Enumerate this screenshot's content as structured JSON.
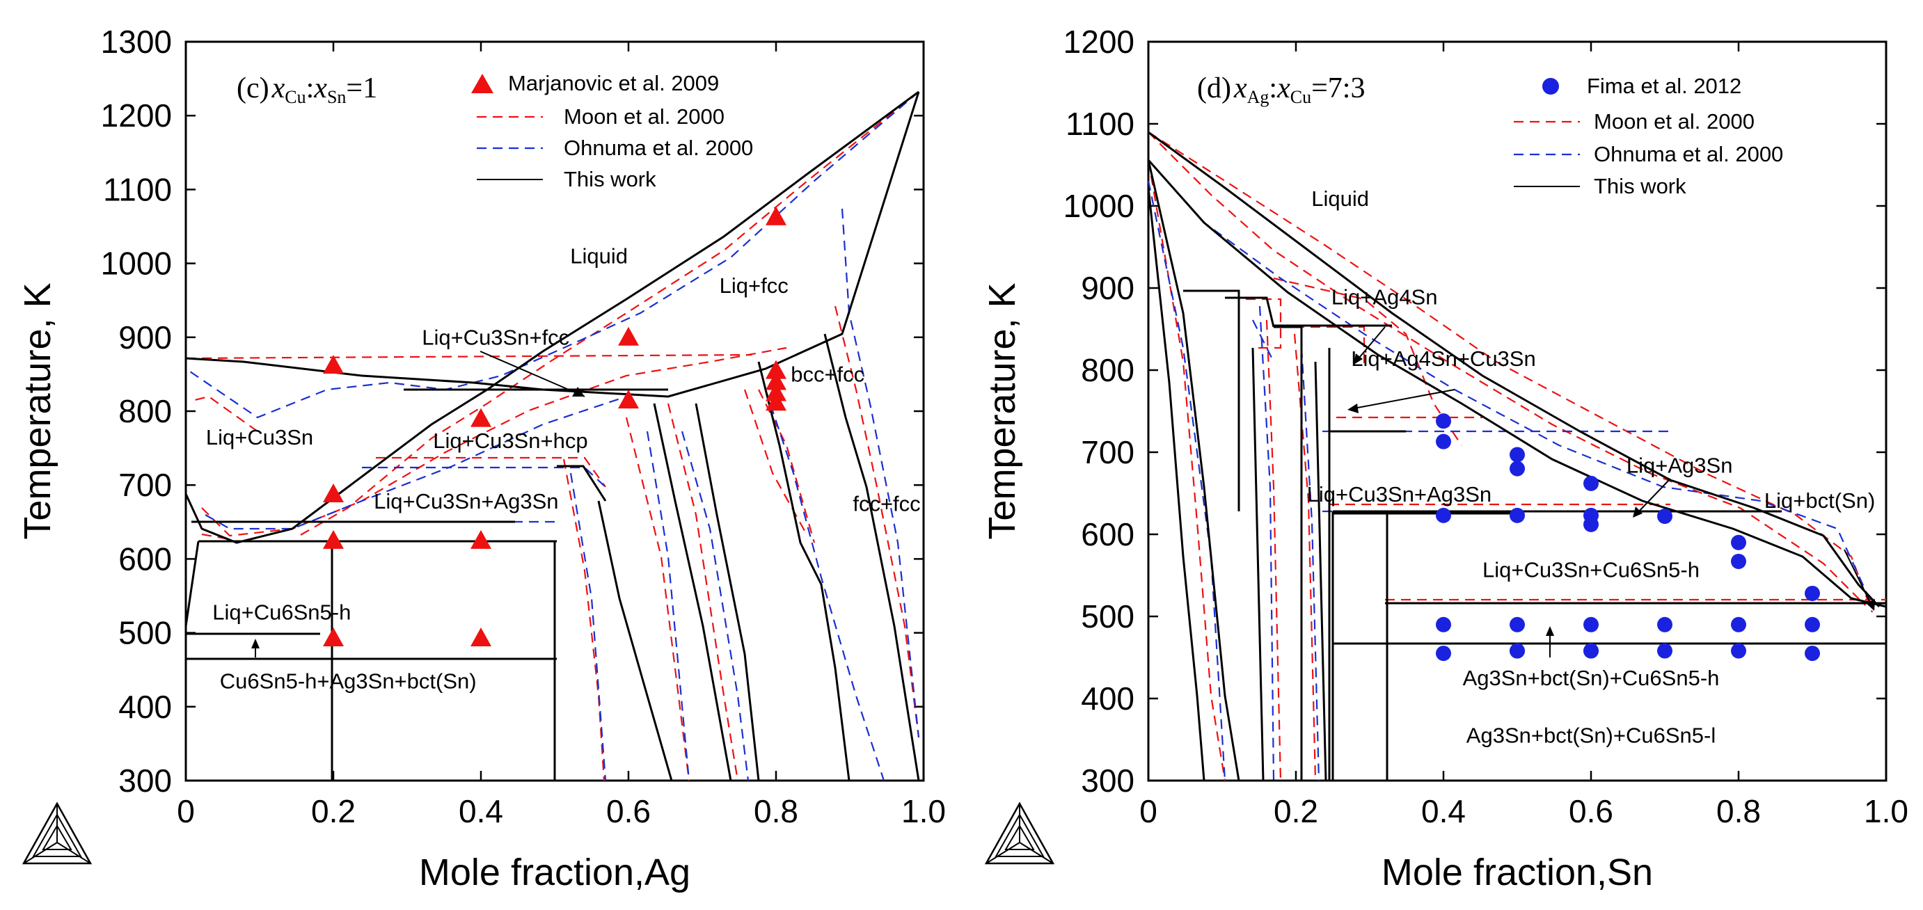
{
  "chart_data": [
    {
      "type": "scatter",
      "panel": "c",
      "panel_label_prefix": "(c)",
      "panel_label_math": "x",
      "panel_label_sub1": "Cu",
      "panel_label_sep": ":",
      "panel_label_sub2": "Sn",
      "panel_label_suffix": "=1",
      "xlabel": "Mole fraction,Ag",
      "ylabel": "Temperature, K",
      "xlim": [
        0,
        1.0
      ],
      "ylim": [
        300,
        1300
      ],
      "xticks": [
        "0",
        "0.2",
        "0.4",
        "0.6",
        "0.8",
        "1.0"
      ],
      "xtick_values": [
        0,
        0.2,
        0.4,
        0.6,
        0.8,
        1.0
      ],
      "yticks": [
        "300",
        "400",
        "500",
        "600",
        "700",
        "800",
        "900",
        "1000",
        "1100",
        "1200",
        "1300"
      ],
      "ytick_values": [
        300,
        400,
        500,
        600,
        700,
        800,
        900,
        1000,
        1100,
        1200,
        1300
      ],
      "legend": [
        {
          "label": "Marjanovic et al. 2009",
          "style": "red-triangle"
        },
        {
          "label": "Moon et al. 2000",
          "style": "red-dash"
        },
        {
          "label": "Ohnuma et al. 2000",
          "style": "blue-dash"
        },
        {
          "label": "This work",
          "style": "black-line"
        }
      ],
      "experimental_points": {
        "name": "Marjanovic et al. 2009",
        "color": "#ee1111",
        "x": [
          0.2,
          0.2,
          0.2,
          0.4,
          0.4,
          0.4,
          0.6,
          0.6,
          0.8,
          0.8,
          0.8,
          0.8,
          0.8
        ],
        "y": [
          862,
          688,
          625,
          790,
          625,
          493,
          900,
          815,
          1063,
          855,
          840,
          825,
          812
        ],
        "extra_points": [
          {
            "x": 0.2,
            "y": 493
          }
        ]
      },
      "annotations": [
        {
          "text": "Liquid",
          "x": 0.56,
          "y": 1000
        },
        {
          "text": "Liq+fcc",
          "x": 0.77,
          "y": 960
        },
        {
          "text": "Liq+Cu3Sn+fcc",
          "x": 0.42,
          "y": 890
        },
        {
          "text": "bcc+fcc",
          "x": 0.87,
          "y": 840
        },
        {
          "text": "Liq+Cu3Sn",
          "x": 0.1,
          "y": 755
        },
        {
          "text": "Liq+Cu3Sn+hcp",
          "x": 0.44,
          "y": 750
        },
        {
          "text": "Liq+Cu3Sn+Ag3Sn",
          "x": 0.38,
          "y": 668
        },
        {
          "text": "fcc+fcc",
          "x": 0.95,
          "y": 665
        },
        {
          "text": "Liq+Cu6Sn5-h",
          "x": 0.13,
          "y": 518
        },
        {
          "text": "Cu6Sn5-h+Ag3Sn+bct(Sn)",
          "x": 0.22,
          "y": 425
        }
      ]
    },
    {
      "type": "scatter",
      "panel": "d",
      "panel_label_prefix": "(d)",
      "panel_label_math": "x",
      "panel_label_sub1": "Ag",
      "panel_label_sep": ":",
      "panel_label_sub2": "Cu",
      "panel_label_suffix": "=7:3",
      "xlabel": "Mole fraction,Sn",
      "ylabel": "Temperature, K",
      "xlim": [
        0,
        1.0
      ],
      "ylim": [
        300,
        1200
      ],
      "xticks": [
        "0",
        "0.2",
        "0.4",
        "0.6",
        "0.8",
        "1.0"
      ],
      "xtick_values": [
        0,
        0.2,
        0.4,
        0.6,
        0.8,
        1.0
      ],
      "yticks": [
        "300",
        "400",
        "500",
        "600",
        "700",
        "800",
        "900",
        "1000",
        "1100",
        "1200"
      ],
      "ytick_values": [
        300,
        400,
        500,
        600,
        700,
        800,
        900,
        1000,
        1100,
        1200
      ],
      "legend": [
        {
          "label": "Fima et al. 2012",
          "style": "blue-circle"
        },
        {
          "label": "Moon et al. 2000",
          "style": "red-dash"
        },
        {
          "label": "Ohnuma et al. 2000",
          "style": "blue-dash"
        },
        {
          "label": "This work",
          "style": "black-line"
        }
      ],
      "experimental_points": {
        "name": "Fima et al. 2012",
        "color": "#1a22e0",
        "x": [
          0.4,
          0.4,
          0.4,
          0.4,
          0.4,
          0.5,
          0.5,
          0.5,
          0.5,
          0.5,
          0.5,
          0.6,
          0.6,
          0.6,
          0.6,
          0.6,
          0.6,
          0.7,
          0.7,
          0.7,
          0.8,
          0.8,
          0.8,
          0.8,
          0.9,
          0.9,
          0.9
        ],
        "y": [
          738,
          713,
          623,
          490,
          455,
          697,
          680,
          623,
          490,
          458,
          458,
          662,
          623,
          612,
          490,
          458,
          458,
          622,
          490,
          458,
          590,
          567,
          490,
          458,
          528,
          490,
          455
        ]
      },
      "annotations": [
        {
          "text": "Liquid",
          "x": 0.26,
          "y": 1000
        },
        {
          "text": "Liq+Ag4Sn",
          "x": 0.32,
          "y": 880
        },
        {
          "text": "Liq+Ag4Sn+Cu3Sn",
          "x": 0.4,
          "y": 805
        },
        {
          "text": "Liq+Ag3Sn",
          "x": 0.72,
          "y": 675
        },
        {
          "text": "Liq+Cu3Sn+Ag3Sn",
          "x": 0.34,
          "y": 640
        },
        {
          "text": "Liq+bct(Sn)",
          "x": 0.91,
          "y": 632
        },
        {
          "text": "Liq+Cu3Sn+Cu6Sn5-h",
          "x": 0.6,
          "y": 548
        },
        {
          "text": "Ag3Sn+bct(Sn)+Cu6Sn5-h",
          "x": 0.6,
          "y": 416
        },
        {
          "text": "Ag3Sn+bct(Sn)+Cu6Sn5-l",
          "x": 0.6,
          "y": 346
        }
      ]
    }
  ]
}
